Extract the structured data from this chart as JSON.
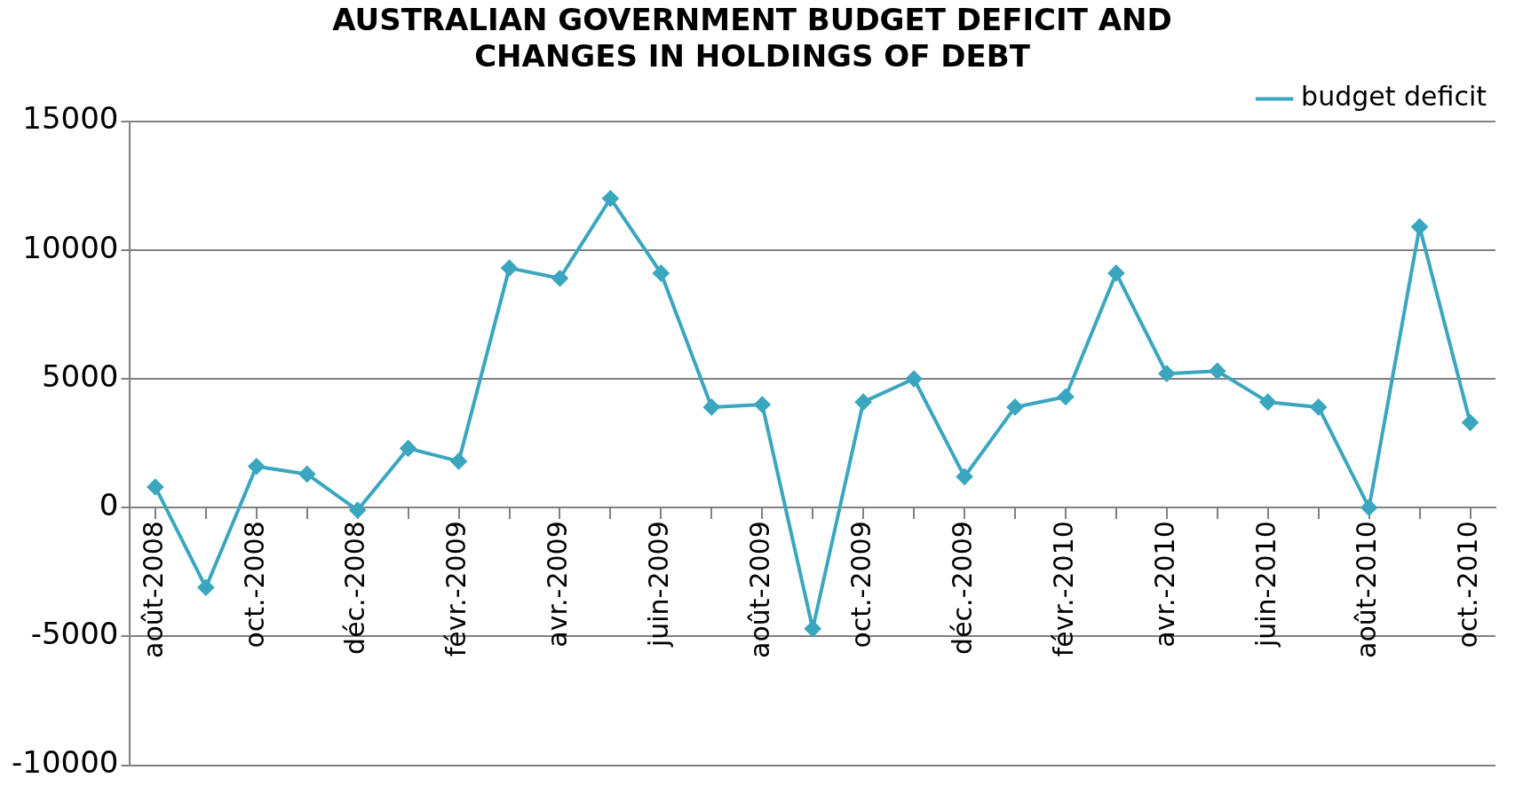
{
  "chart_data": {
    "type": "line",
    "title": [
      "AUSTRALIAN GOVERNMENT BUDGET DEFICIT AND",
      "CHANGES IN HOLDINGS OF DEBT"
    ],
    "categories": [
      "août-2008",
      null,
      "oct.-2008",
      null,
      "déc.-2008",
      null,
      "févr.-2009",
      null,
      "avr.-2009",
      null,
      "juin-2009",
      null,
      "août-2009",
      null,
      "oct.-2009",
      null,
      "déc.-2009",
      null,
      "févr.-2010",
      null,
      "avr.-2010",
      null,
      "juin-2010",
      null,
      "août-2010",
      null,
      "oct.-2010"
    ],
    "series": [
      {
        "name": "budget deficit",
        "color": "#3aa6bf",
        "values": [
          800,
          -3100,
          1600,
          1300,
          -100,
          2300,
          1800,
          9300,
          8900,
          12000,
          9100,
          3900,
          4000,
          -4700,
          4100,
          5000,
          1200,
          3900,
          4300,
          9100,
          5200,
          5300,
          4100,
          3900,
          0,
          10900,
          3300
        ]
      }
    ],
    "ylim": [
      -10000,
      15000
    ],
    "yticks": [
      -10000,
      -5000,
      0,
      5000,
      10000,
      15000
    ],
    "grid": "y",
    "legend": "top right",
    "marker": "diamond",
    "line_style": "solid"
  }
}
